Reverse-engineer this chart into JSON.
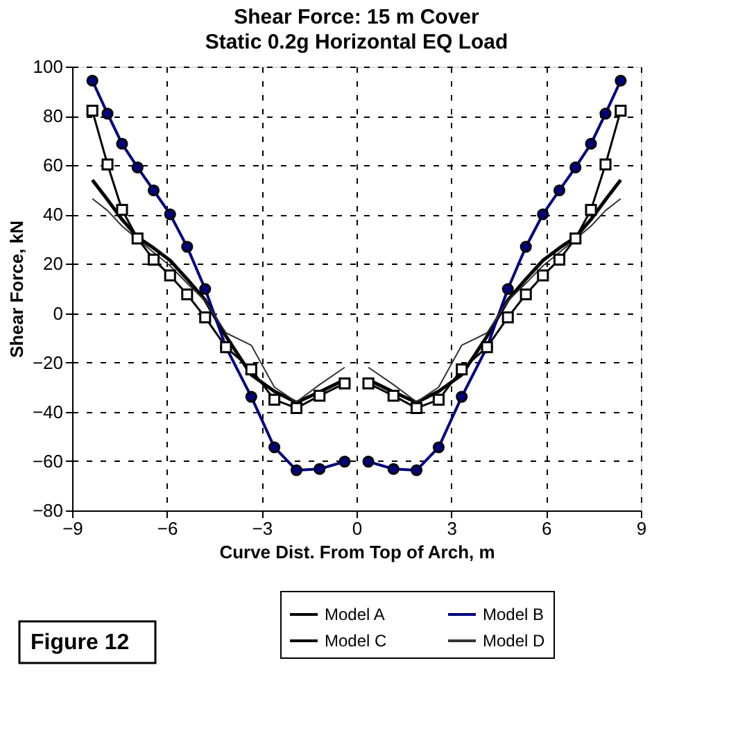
{
  "chart_data": {
    "type": "line",
    "title": "Shear Force: 15 m Cover",
    "subtitle": "Static 0.2g Horizontal EQ Load",
    "xlabel": "Curve Dist. From Top of Arch, m",
    "ylabel": "Shear Force, kN",
    "x": [
      -8.36,
      -7.88,
      -7.42,
      -6.93,
      -6.42,
      -5.9,
      -5.36,
      -4.79,
      -4.13,
      -3.33,
      -2.6,
      -1.9,
      -1.17,
      -0.375,
      0,
      0.375,
      1.17,
      1.9,
      2.6,
      3.33,
      4.13,
      4.79,
      5.36,
      5.9,
      6.42,
      6.93,
      7.42,
      7.88,
      8.36
    ],
    "series": [
      {
        "name": "Model A",
        "color": "#000000",
        "marker": "none",
        "values": [
          54,
          46,
          38,
          30.8,
          26.4,
          21.4,
          13.8,
          5.3,
          -9.4,
          -25,
          -31.7,
          -36.2,
          -32,
          -27,
          null,
          -27,
          -32,
          -36.2,
          -31.7,
          -25,
          -9.4,
          5.3,
          13.8,
          21.4,
          26.4,
          30.8,
          38,
          46,
          54
        ]
      },
      {
        "name": "Model B",
        "color": "#000080",
        "marker": "circle",
        "values": [
          94.3,
          80.9,
          68.7,
          59.1,
          49.8,
          40.1,
          26.9,
          9.8,
          -13.8,
          -33.9,
          -54.4,
          -63.7,
          -63.2,
          -60.2,
          null,
          -60.2,
          -63.2,
          -63.7,
          -54.4,
          -33.9,
          -13.8,
          9.8,
          26.9,
          40.1,
          49.8,
          59.1,
          68.7,
          80.9,
          94.3
        ]
      },
      {
        "name": "Model C",
        "color": "#000000",
        "marker": "square",
        "values": [
          82.1,
          60.3,
          41.9,
          30.3,
          21.7,
          15.3,
          7.6,
          -1.7,
          -13.8,
          -22.8,
          -35.1,
          -38.5,
          -33.5,
          -28.5,
          null,
          -28.5,
          -33.5,
          -38.5,
          -35.1,
          -22.8,
          -13.8,
          -1.7,
          7.6,
          15.3,
          21.7,
          30.3,
          41.9,
          60.3,
          82.1
        ]
      },
      {
        "name": "Model D",
        "color": "#333333",
        "marker": "none",
        "values": [
          46.4,
          41.6,
          35.3,
          30,
          24.6,
          19.2,
          12.1,
          5,
          -8,
          -13,
          -30,
          -36,
          -29,
          -22,
          null,
          -22,
          -29,
          -36,
          -30,
          -13,
          -8,
          5,
          12.1,
          19.2,
          24.6,
          30,
          35.3,
          41.6,
          46.4
        ]
      }
    ],
    "xlim": [
      -9,
      9
    ],
    "xticks": [
      -9,
      -6,
      -3,
      0,
      3,
      6,
      9
    ],
    "ylim": [
      -80,
      100
    ],
    "yticks": [
      -80,
      -60,
      -40,
      -20,
      0,
      20,
      40,
      60,
      80,
      100
    ],
    "grid": true,
    "legend": "bottom",
    "line_style": "solid",
    "annotations": [
      "Figure 12"
    ]
  }
}
